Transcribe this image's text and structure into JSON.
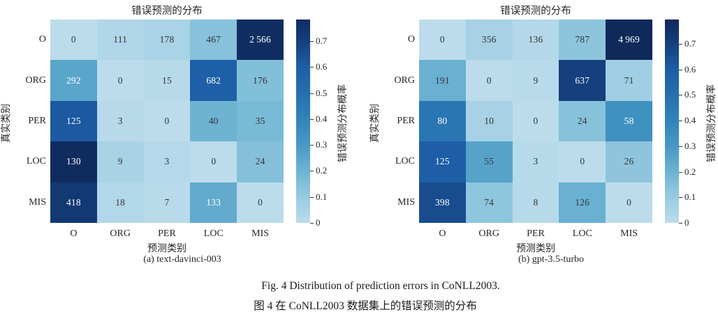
{
  "figure": {
    "caption_en": "Fig. 4    Distribution of prediction errors in CoNLL2003.",
    "caption_zh": "图 4    在 CoNLL2003 数据集上的错误预测的分布"
  },
  "chart_data": [
    {
      "type": "heatmap",
      "title": "错误预测的分布",
      "xlabel": "预测类别",
      "ylabel": "真实类别",
      "caption": "(a)  text-davinci-003",
      "categories_x": [
        "O",
        "ORG",
        "PER",
        "LOC",
        "MIS"
      ],
      "categories_y": [
        "O",
        "ORG",
        "PER",
        "LOC",
        "MIS"
      ],
      "values": [
        [
          0,
          111,
          178,
          467,
          2566
        ],
        [
          292,
          0,
          15,
          682,
          176
        ],
        [
          125,
          3,
          0,
          40,
          35
        ],
        [
          130,
          9,
          3,
          0,
          24
        ],
        [
          418,
          18,
          7,
          133,
          0
        ]
      ],
      "cell_color_rule": "row-normalized probability value/rowSum mapped on blues colormap",
      "white_text_min_p": 0.225,
      "colorbar": {
        "label": "错误预测分布概率",
        "ticks": [
          0,
          0.1,
          0.2,
          0.3,
          0.4,
          0.5,
          0.6,
          0.7
        ],
        "min": 0,
        "max_is_data_max": true
      }
    },
    {
      "type": "heatmap",
      "title": "错误预测的分布",
      "xlabel": "预测类别",
      "ylabel": "真实类别",
      "caption": "(b)  gpt-3.5-turbo",
      "categories_x": [
        "O",
        "ORG",
        "PER",
        "LOC",
        "MIS"
      ],
      "categories_y": [
        "O",
        "ORG",
        "PER",
        "LOC",
        "MIS"
      ],
      "values": [
        [
          0,
          356,
          136,
          787,
          4969
        ],
        [
          191,
          0,
          9,
          637,
          71
        ],
        [
          80,
          10,
          0,
          24,
          58
        ],
        [
          125,
          55,
          3,
          0,
          26
        ],
        [
          398,
          74,
          8,
          126,
          0
        ]
      ],
      "cell_color_rule": "row-normalized probability value/rowSum mapped on blues colormap",
      "white_text_min_p": 0.3,
      "colorbar": {
        "label": "错误预测分布概率",
        "ticks": [
          0,
          0.1,
          0.2,
          0.3,
          0.4,
          0.5,
          0.6,
          0.7
        ],
        "min": 0,
        "max_is_data_max": true
      }
    }
  ],
  "colors": {
    "background": "#ffffff",
    "dark_cell_text": "#343434",
    "light_cell_text": "#ffffff",
    "label_text": "#262626",
    "colormap_stops": [
      [
        0.0,
        "#bcdcec"
      ],
      [
        0.1,
        "#98cbe0"
      ],
      [
        0.2,
        "#6db3d2"
      ],
      [
        0.3,
        "#4899c4"
      ],
      [
        0.4,
        "#3184ba"
      ],
      [
        0.5,
        "#266fae"
      ],
      [
        0.6,
        "#1d5ea6"
      ],
      [
        0.7,
        "#153f7e"
      ],
      [
        0.8,
        "#0f2858"
      ]
    ]
  }
}
